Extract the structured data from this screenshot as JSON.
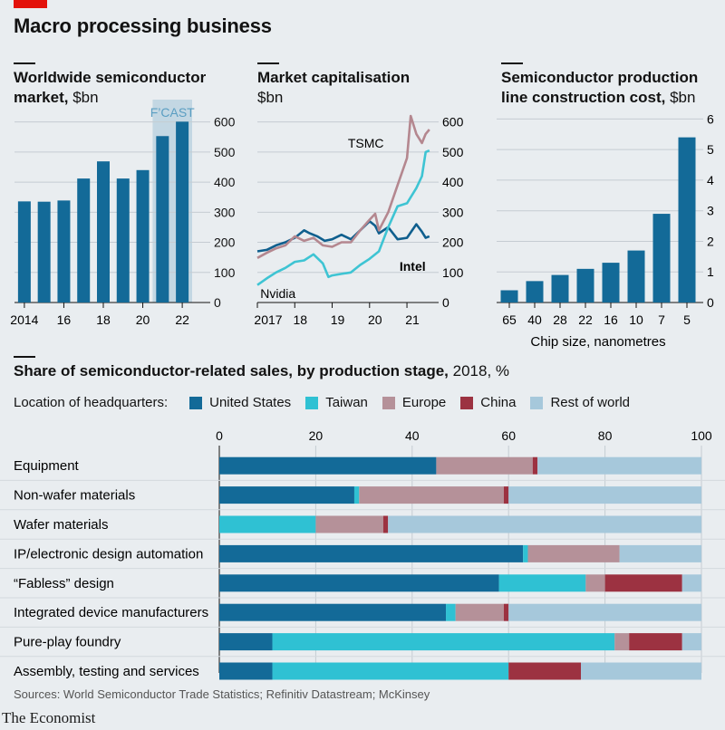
{
  "title": "Macro processing business",
  "colors": {
    "us": "#136a98",
    "taiwan": "#2fc1d3",
    "europe": "#b59199",
    "china": "#9c3241",
    "rest": "#a6c8db",
    "line_tsmc": "#b4878f",
    "line_intel": "#0f5f8e",
    "line_nvidia": "#3ec4d3"
  },
  "panel1": {
    "title": "Worldwide semiconductor market,",
    "unit": " $bn",
    "forecast_label": "F’CAST",
    "chart_data": {
      "type": "bar",
      "x": [
        2014,
        2015,
        2016,
        2017,
        2018,
        2019,
        2020,
        2021,
        2022
      ],
      "values": [
        336,
        335,
        339,
        412,
        469,
        412,
        440,
        553,
        601
      ],
      "forecast_from": 2021,
      "x_tick_labels": [
        "2014",
        "16",
        "18",
        "20",
        "22"
      ],
      "y_ticks": [
        "0",
        "100",
        "200",
        "300",
        "400",
        "500",
        "600"
      ],
      "ylim": [
        0,
        620
      ]
    }
  },
  "panel2": {
    "title": "Market capitalisation",
    "unit": "$bn",
    "chart_data": {
      "type": "line",
      "x_tick_labels": [
        "2017",
        "18",
        "19",
        "20",
        "21"
      ],
      "y_ticks": [
        "0",
        "100",
        "200",
        "300",
        "400",
        "500",
        "600"
      ],
      "ylim": [
        0,
        620
      ],
      "series": [
        {
          "name": "TSMC",
          "x": [
            2017.0,
            2017.25,
            2017.5,
            2017.75,
            2018.0,
            2018.25,
            2018.5,
            2018.75,
            2019.0,
            2019.25,
            2019.5,
            2019.75,
            2020.0,
            2020.15,
            2020.25,
            2020.5,
            2020.75,
            2021.0,
            2021.1,
            2021.25,
            2021.4,
            2021.5,
            2021.6
          ],
          "values": [
            148,
            165,
            180,
            190,
            220,
            205,
            215,
            190,
            185,
            200,
            200,
            240,
            275,
            295,
            240,
            300,
            390,
            480,
            620,
            560,
            530,
            560,
            575
          ]
        },
        {
          "name": "Intel",
          "x": [
            2017.0,
            2017.25,
            2017.5,
            2017.75,
            2018.0,
            2018.25,
            2018.4,
            2018.6,
            2018.8,
            2019.0,
            2019.25,
            2019.5,
            2019.75,
            2020.0,
            2020.15,
            2020.25,
            2020.5,
            2020.75,
            2021.0,
            2021.25,
            2021.4,
            2021.5,
            2021.6
          ],
          "values": [
            170,
            175,
            190,
            200,
            215,
            240,
            230,
            220,
            205,
            210,
            225,
            210,
            240,
            270,
            255,
            230,
            250,
            210,
            215,
            260,
            235,
            215,
            220
          ]
        },
        {
          "name": "Nvidia",
          "x": [
            2017.0,
            2017.25,
            2017.5,
            2017.75,
            2018.0,
            2018.25,
            2018.5,
            2018.75,
            2018.9,
            2019.0,
            2019.25,
            2019.5,
            2019.75,
            2020.0,
            2020.25,
            2020.5,
            2020.75,
            2021.0,
            2021.25,
            2021.4,
            2021.5,
            2021.6
          ],
          "values": [
            58,
            80,
            100,
            115,
            135,
            140,
            160,
            130,
            85,
            90,
            95,
            100,
            125,
            145,
            170,
            250,
            320,
            330,
            380,
            420,
            500,
            505
          ]
        }
      ]
    }
  },
  "panel3": {
    "title": "Semiconductor production line construction cost,",
    "unit": " $bn",
    "xlabel": "Chip size, nanometres",
    "chart_data": {
      "type": "bar",
      "categories": [
        "65",
        "40",
        "28",
        "22",
        "16",
        "10",
        "7",
        "5"
      ],
      "values": [
        0.4,
        0.7,
        0.9,
        1.1,
        1.3,
        1.7,
        2.9,
        5.4
      ],
      "y_ticks": [
        "0",
        "1",
        "2",
        "3",
        "4",
        "5",
        "6"
      ],
      "ylim": [
        0,
        6.1
      ]
    }
  },
  "panel4": {
    "title": "Share of semiconductor-related sales, by production stage,",
    "unit": " 2018, %",
    "legend_title": "Location of headquarters:",
    "chart_data": {
      "type": "bar",
      "orientation": "horizontal",
      "stacked": true,
      "x_ticks": [
        "0",
        "20",
        "40",
        "60",
        "80",
        "100"
      ],
      "xlim": [
        0,
        100
      ],
      "categories": [
        "Equipment",
        "Non-wafer materials",
        "Wafer materials",
        "IP/electronic design automation",
        "“Fabless” design",
        "Integrated device manufacturers",
        "Pure-play foundry",
        "Assembly, testing and services"
      ],
      "series": [
        {
          "name": "United States",
          "values": [
            45,
            28,
            0,
            63,
            58,
            47,
            11,
            11
          ]
        },
        {
          "name": "Taiwan",
          "values": [
            0,
            1,
            20,
            1,
            18,
            2,
            71,
            49
          ]
        },
        {
          "name": "Europe",
          "values": [
            20,
            30,
            14,
            19,
            4,
            10,
            3,
            0
          ]
        },
        {
          "name": "China",
          "values": [
            1,
            1,
            1,
            0,
            16,
            1,
            11,
            15
          ]
        },
        {
          "name": "Rest of world",
          "values": [
            34,
            40,
            65,
            17,
            4,
            40,
            4,
            25
          ]
        }
      ]
    }
  },
  "source": "Sources: World Semiconductor Trade Statistics; Refinitiv Datastream; McKinsey",
  "brand": "The Economist"
}
